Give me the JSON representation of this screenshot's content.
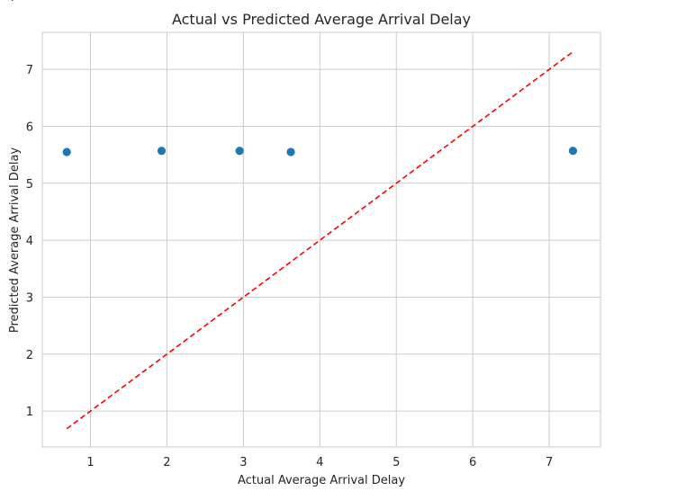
{
  "chart_data": {
    "type": "scatter",
    "title": "Actual vs Predicted Average Arrival Delay",
    "xlabel": "Actual Average Arrival Delay",
    "ylabel": "Predicted Average Arrival Delay",
    "xlim": [
      0.37,
      7.67
    ],
    "ylim": [
      0.37,
      7.65
    ],
    "xticks": [
      1,
      2,
      3,
      4,
      5,
      6,
      7
    ],
    "yticks": [
      1,
      2,
      3,
      4,
      5,
      6,
      7
    ],
    "grid": true,
    "series": [
      {
        "color": "#1f77b4",
        "points": [
          {
            "x": 0.69,
            "y": 5.55
          },
          {
            "x": 1.93,
            "y": 5.57
          },
          {
            "x": 2.95,
            "y": 5.57
          },
          {
            "x": 3.62,
            "y": 5.55
          },
          {
            "x": 7.31,
            "y": 5.57
          }
        ]
      }
    ],
    "reference_line": {
      "style": "dashed",
      "color": "#ff0000",
      "from": {
        "x": 0.69,
        "y": 0.69
      },
      "to": {
        "x": 7.31,
        "y": 7.31
      }
    }
  }
}
